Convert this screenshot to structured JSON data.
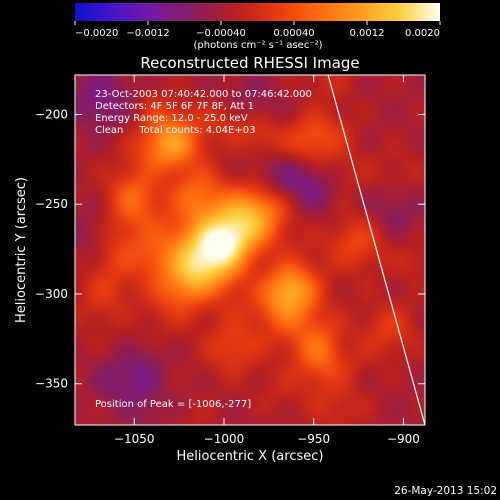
{
  "title": "Reconstructed RHESSI Image",
  "info_lines": [
    "23-Oct-2003 07:40:42.000 to 07:46:42.000",
    "Detectors: 4F 5F 6F 7F 8F, Att 1",
    "Energy Range: 12.0 - 25.0 keV",
    "Clean     Total counts: 4.04E+03"
  ],
  "peak_label": "Position of Peak = [-1006,-277]",
  "footer_date": "26-May-2013 15:02",
  "colorbar": {
    "min": -0.002,
    "max": 0.002,
    "tick_values": [
      -0.002,
      -0.0012,
      -0.0004,
      0.0004,
      0.0012,
      0.002
    ],
    "tick_labels": [
      "−0.0020",
      "−0.0012",
      "−0.00040",
      "0.00040",
      "0.0012",
      "0.0020"
    ],
    "unit_label": "(photons cm⁻² s⁻¹ asec⁻²)",
    "colors": [
      "#1010d0",
      "#4a14c8",
      "#7a1a9a",
      "#8a1e5a",
      "#b82020",
      "#e83a10",
      "#ff6a10",
      "#ff9a20",
      "#ffd040",
      "#fffff0"
    ]
  },
  "chart_data": {
    "type": "heatmap",
    "title": "Reconstructed RHESSI Image",
    "xlabel": "Heliocentric X (arcsec)",
    "ylabel": "Heliocentric Y (arcsec)",
    "xlim": [
      -1083,
      -888
    ],
    "ylim": [
      -373,
      -178
    ],
    "x_ticks": [
      -1050,
      -1000,
      -950,
      -900
    ],
    "x_tick_labels": [
      "−1050",
      "−1000",
      "−950",
      "−900"
    ],
    "y_ticks": [
      -200,
      -250,
      -300,
      -350
    ],
    "y_tick_labels": [
      "−200",
      "−250",
      "−300",
      "−350"
    ],
    "peak": [
      -1006,
      -277
    ],
    "limb_line": [
      [
        -942,
        -178
      ],
      [
        -888,
        -373
      ]
    ],
    "sources": [
      {
        "x": -1006,
        "y": -277,
        "flux": 0.002
      },
      {
        "x": -990,
        "y": -262,
        "flux": 0.0015
      },
      {
        "x": -1018,
        "y": -292,
        "flux": 0.001
      },
      {
        "x": -975,
        "y": -250,
        "flux": 0.0007
      },
      {
        "x": -1050,
        "y": -245,
        "flux": 0.0008
      },
      {
        "x": -1030,
        "y": -215,
        "flux": 0.0006
      },
      {
        "x": -1015,
        "y": -245,
        "flux": 0.0009
      },
      {
        "x": -965,
        "y": -300,
        "flux": 0.0008
      },
      {
        "x": -945,
        "y": -330,
        "flux": 0.0007
      },
      {
        "x": -925,
        "y": -270,
        "flux": 0.0006
      },
      {
        "x": -905,
        "y": -230,
        "flux": 0.0006
      },
      {
        "x": -908,
        "y": -320,
        "flux": 0.0005
      },
      {
        "x": -935,
        "y": -365,
        "flux": 0.0006
      },
      {
        "x": -995,
        "y": -330,
        "flux": 0.0006
      },
      {
        "x": -1065,
        "y": -298,
        "flux": 0.0004
      },
      {
        "x": -958,
        "y": -215,
        "flux": 0.0005
      },
      {
        "x": -1045,
        "y": -345,
        "flux": -0.0006
      },
      {
        "x": -1070,
        "y": -190,
        "flux": -0.0005
      },
      {
        "x": -1070,
        "y": -265,
        "flux": -0.0004
      }
    ]
  }
}
